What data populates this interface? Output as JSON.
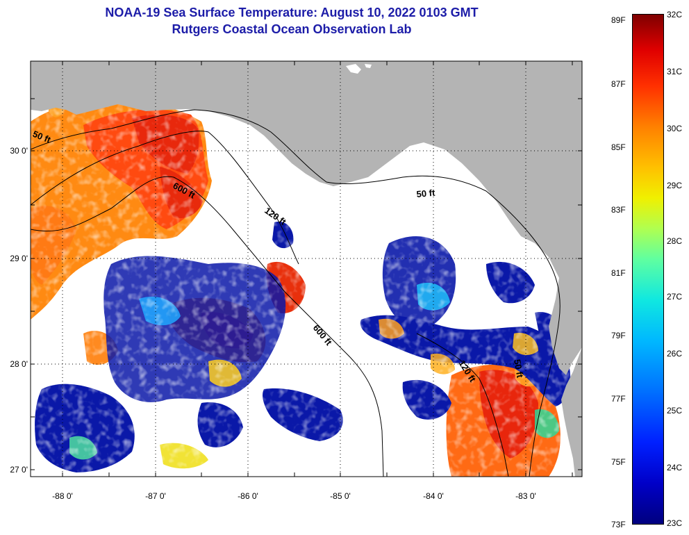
{
  "title": {
    "line1": "NOAA-19 Sea Surface Temperature:  August 10, 2022 0103 GMT",
    "line2": "Rutgers Coastal Ocean Observation Lab"
  },
  "map": {
    "lat_ticks": [
      "30 0'",
      "29 0'",
      "28 0'",
      "27 0'"
    ],
    "lon_ticks": [
      "-88 0'",
      "-87 0'",
      "-86 0'",
      "-85 0'",
      "-84 0'",
      "-83 0'"
    ],
    "contour_labels": [
      "50 ft",
      "600 ft",
      "120 ft",
      "50 ft",
      "600 ft",
      "120 ft",
      "50 ft"
    ],
    "land_color": "#b4b4b4",
    "cloud_color": "#ffffff"
  },
  "colorbar": {
    "fahrenheit": [
      "89F",
      "87F",
      "85F",
      "83F",
      "81F",
      "79F",
      "77F",
      "75F",
      "73F"
    ],
    "celsius": [
      "32C",
      "31C",
      "30C",
      "29C",
      "28C",
      "27C",
      "26C",
      "25C",
      "24C",
      "23C"
    ]
  }
}
